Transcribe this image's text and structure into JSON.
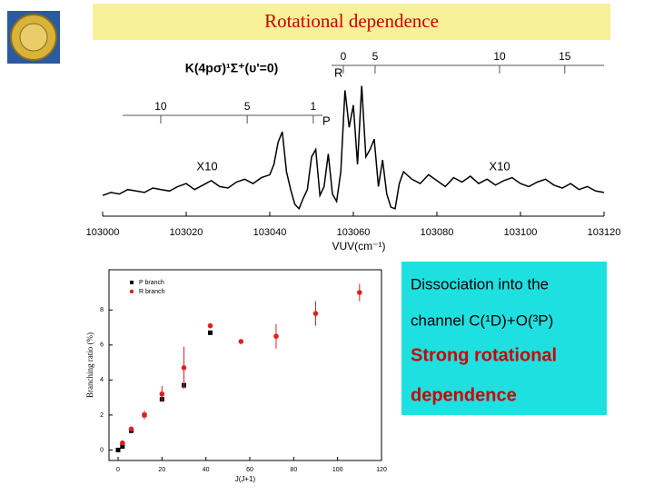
{
  "title": "Rotational dependence",
  "text_box": {
    "lines": [
      "Dissociation into the",
      "channel C(¹D)+O(³P)"
    ],
    "highlight": [
      "Strong rotational",
      "dependence"
    ]
  },
  "chart_data": [
    {
      "type": "line",
      "color": "#000000",
      "x": [
        103000,
        103002,
        103004,
        103006,
        103008,
        103010,
        103012,
        103014,
        103016,
        103018,
        103020,
        103022,
        103024,
        103026,
        103028,
        103030,
        103032,
        103034,
        103036,
        103038,
        103040,
        103041,
        103042,
        103043,
        103044,
        103045,
        103046,
        103047,
        103048,
        103049,
        103050,
        103051,
        103052,
        103053,
        103054,
        103055,
        103056,
        103057,
        103058,
        103059,
        103060,
        103061,
        103062,
        103063,
        103064,
        103065,
        103066,
        103067,
        103068,
        103069,
        103070,
        103071,
        103072,
        103074,
        103076,
        103078,
        103080,
        103082,
        103084,
        103086,
        103088,
        103090,
        103092,
        103094,
        103096,
        103098,
        103100,
        103102,
        103104,
        103106,
        103108,
        103110,
        103112,
        103114,
        103116,
        103118,
        103120
      ],
      "values": [
        14,
        16,
        15,
        18,
        17,
        16,
        19,
        18,
        17,
        20,
        22,
        18,
        21,
        24,
        20,
        19,
        23,
        25,
        22,
        26,
        28,
        35,
        50,
        57,
        30,
        18,
        8,
        5,
        12,
        18,
        40,
        45,
        14,
        20,
        42,
        15,
        10,
        30,
        85,
        60,
        75,
        35,
        88,
        40,
        45,
        52,
        20,
        38,
        15,
        6,
        5,
        22,
        30,
        25,
        22,
        28,
        24,
        20,
        26,
        23,
        27,
        22,
        25,
        21,
        24,
        26,
        22,
        20,
        23,
        25,
        21,
        19,
        22,
        18,
        20,
        17,
        16
      ],
      "xlim": [
        103000,
        103120
      ],
      "xticks": [
        103000,
        103020,
        103040,
        103060,
        103080,
        103100,
        103120
      ],
      "ylim": [
        0,
        100
      ],
      "xlabel": "VUV(cm⁻¹)",
      "annotations": [
        "K(4pσ)¹Σ⁺(υ'=0)",
        "X10",
        "X10"
      ],
      "branches": [
        {
          "name": "R",
          "ticks": [
            {
              "value": 103057.6,
              "label": "0"
            },
            {
              "value": 103065.2,
              "label": "5"
            },
            {
              "value": 103095,
              "label": "10"
            },
            {
              "value": 103110.6,
              "label": "15"
            }
          ]
        },
        {
          "name": "P",
          "ticks": [
            {
              "value": 103050.4,
              "label": "1"
            },
            {
              "value": 103034.6,
              "label": "5"
            },
            {
              "value": 103013.9,
              "label": "10"
            }
          ]
        }
      ]
    },
    {
      "type": "scatter",
      "xlabel": "J(J+1)",
      "ylabel": "Branching ratio (%)",
      "xlim": [
        0,
        120
      ],
      "xticks": [
        0,
        20,
        40,
        60,
        80,
        100,
        120
      ],
      "ylim": [
        -0.6,
        10.3
      ],
      "yticks": [
        0,
        2,
        4,
        6,
        8
      ],
      "series": [
        {
          "name": "P branch",
          "color": "#000000",
          "marker": "square",
          "x": [
            0,
            2,
            6,
            12,
            20,
            30,
            42
          ],
          "values": [
            0,
            0.2,
            1.1,
            2.0,
            2.9,
            3.7,
            6.7
          ]
        },
        {
          "name": "R branch",
          "color": "#e02020",
          "marker": "circle",
          "x": [
            2,
            6,
            12,
            20,
            30,
            42,
            56,
            72,
            90,
            110
          ],
          "values": [
            0.4,
            1.2,
            2.0,
            3.2,
            4.7,
            7.1,
            6.2,
            6.5,
            7.8,
            9.0
          ],
          "errors": [
            0.1,
            0.1,
            0.25,
            0.45,
            1.2,
            0.1,
            0.1,
            0.7,
            0.7,
            0.5
          ]
        }
      ]
    }
  ]
}
